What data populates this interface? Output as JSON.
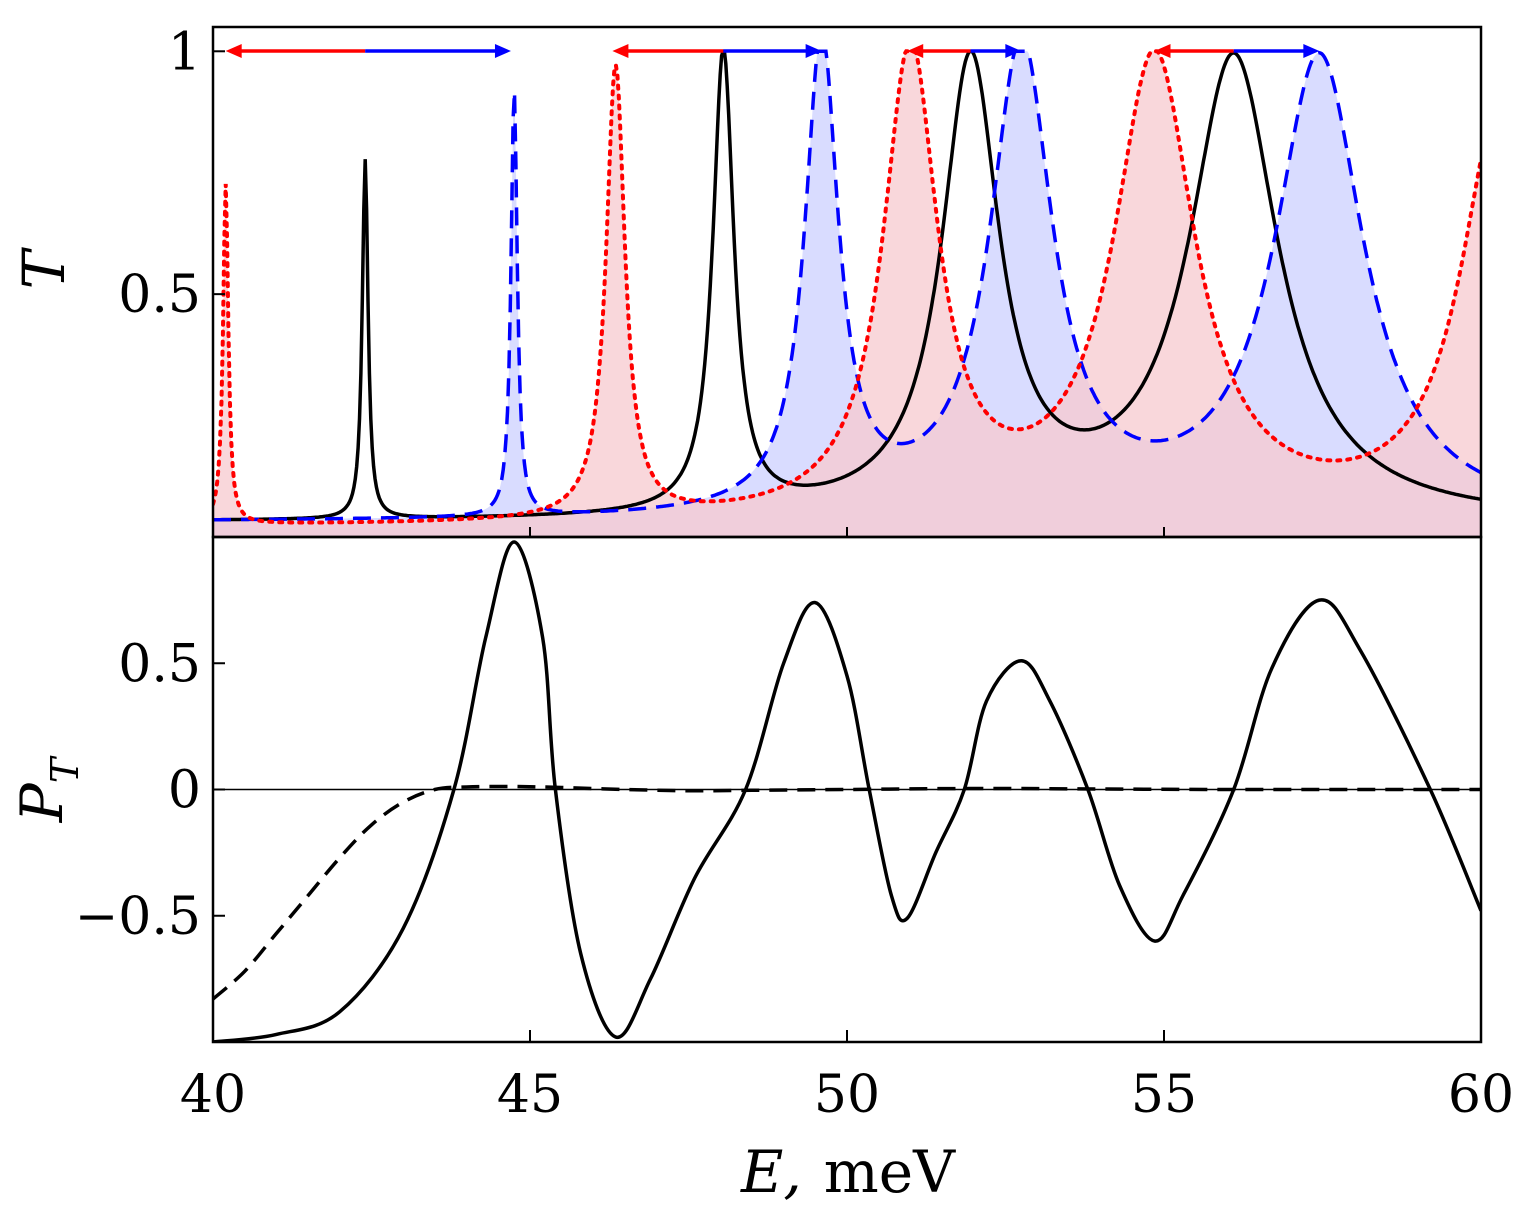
{
  "chart_data": [
    {
      "type": "line",
      "panel": "top",
      "ylabel": "T",
      "xlabel": "",
      "xlim": [
        40,
        60
      ],
      "ylim": [
        0,
        1.05
      ],
      "yticks": [
        {
          "value": 0.5,
          "label": "0.5"
        },
        {
          "value": 1,
          "label": "1"
        }
      ],
      "series": [
        {
          "name": "black-solid",
          "style": "solid",
          "color": "#000000",
          "fill": false,
          "peaks": [
            {
              "e": 42.4,
              "h": 0.74,
              "w": 0.055
            },
            {
              "e": 48.05,
              "h": 0.95,
              "w": 0.2
            },
            {
              "e": 51.95,
              "h": 0.93,
              "w": 0.55
            },
            {
              "e": 56.1,
              "h": 0.95,
              "w": 0.85
            }
          ],
          "baseline": 0.03
        },
        {
          "name": "blue-dashed",
          "style": "dashed",
          "color": "#0000ff",
          "fill": true,
          "fill_color": "#ccd0ff",
          "peaks": [
            {
              "e": 44.75,
              "h": 0.88,
              "w": 0.06
            },
            {
              "e": 49.6,
              "h": 0.97,
              "w": 0.32
            },
            {
              "e": 52.75,
              "h": 0.96,
              "w": 0.6
            },
            {
              "e": 57.45,
              "h": 0.95,
              "w": 0.85
            }
          ],
          "baseline": 0.03
        },
        {
          "name": "red-dotted",
          "style": "dotted",
          "color": "#ff0000",
          "fill": true,
          "fill_color": "#f7c9cf",
          "peaks": [
            {
              "e": 40.2,
              "h": 0.7,
              "w": 0.05
            },
            {
              "e": 46.35,
              "h": 0.93,
              "w": 0.18
            },
            {
              "e": 51.0,
              "h": 0.96,
              "w": 0.52
            },
            {
              "e": 54.85,
              "h": 0.95,
              "w": 0.78
            },
            {
              "e": 60.3,
              "h": 0.85,
              "w": 0.75
            }
          ],
          "baseline": 0.02
        }
      ],
      "arrows": [
        {
          "center": 42.4,
          "left": 40.2,
          "right": 44.7
        },
        {
          "center": 48.05,
          "left": 46.3,
          "right": 49.6
        },
        {
          "center": 51.95,
          "left": 50.95,
          "right": 52.75
        },
        {
          "center": 56.1,
          "left": 54.85,
          "right": 57.45
        }
      ],
      "arrow_colors": {
        "left": "#ff0000",
        "right": "#0000ff"
      }
    },
    {
      "type": "line",
      "panel": "bottom",
      "ylabel": "P",
      "ylabel_sub": "T",
      "xlabel": "E,",
      "xlabel_unit": "meV",
      "xlim": [
        40,
        60
      ],
      "ylim": [
        -1.0,
        1.0
      ],
      "xticks": [
        {
          "value": 40,
          "label": "40"
        },
        {
          "value": 45,
          "label": "45"
        },
        {
          "value": 50,
          "label": "50"
        },
        {
          "value": 55,
          "label": "55"
        },
        {
          "value": 60,
          "label": "60"
        }
      ],
      "yticks": [
        {
          "value": -0.5,
          "label": "−0.5"
        },
        {
          "value": 0,
          "label": "0"
        },
        {
          "value": 0.5,
          "label": "0.5"
        }
      ],
      "zero_line": true,
      "series": [
        {
          "name": "solid",
          "style": "solid",
          "color": "#000000",
          "points": [
            [
              40.0,
              -1.0
            ],
            [
              41.0,
              -0.97
            ],
            [
              42.0,
              -0.88
            ],
            [
              43.0,
              -0.55
            ],
            [
              43.8,
              0.0
            ],
            [
              44.3,
              0.6
            ],
            [
              44.75,
              0.98
            ],
            [
              45.2,
              0.6
            ],
            [
              45.4,
              0.0
            ],
            [
              45.8,
              -0.65
            ],
            [
              46.35,
              -0.98
            ],
            [
              46.9,
              -0.75
            ],
            [
              47.6,
              -0.35
            ],
            [
              48.4,
              0.0
            ],
            [
              49.0,
              0.5
            ],
            [
              49.5,
              0.74
            ],
            [
              50.0,
              0.45
            ],
            [
              50.35,
              0.0
            ],
            [
              50.7,
              -0.42
            ],
            [
              50.95,
              -0.51
            ],
            [
              51.4,
              -0.25
            ],
            [
              51.85,
              0.0
            ],
            [
              52.2,
              0.35
            ],
            [
              52.75,
              0.51
            ],
            [
              53.2,
              0.35
            ],
            [
              53.8,
              0.0
            ],
            [
              54.3,
              -0.38
            ],
            [
              54.85,
              -0.6
            ],
            [
              55.3,
              -0.42
            ],
            [
              56.1,
              0.0
            ],
            [
              56.7,
              0.48
            ],
            [
              57.45,
              0.75
            ],
            [
              58.1,
              0.55
            ],
            [
              59.2,
              0.0
            ],
            [
              60.0,
              -0.48
            ]
          ]
        },
        {
          "name": "dashed",
          "style": "dashed",
          "color": "#000000",
          "points": [
            [
              40.0,
              -0.83
            ],
            [
              40.5,
              -0.72
            ],
            [
              41.0,
              -0.57
            ],
            [
              41.5,
              -0.42
            ],
            [
              42.0,
              -0.27
            ],
            [
              42.5,
              -0.14
            ],
            [
              43.0,
              -0.05
            ],
            [
              43.5,
              0.0
            ],
            [
              44.0,
              0.01
            ],
            [
              44.75,
              0.012
            ],
            [
              45.5,
              0.008
            ],
            [
              46.5,
              0.0
            ],
            [
              47.5,
              -0.005
            ],
            [
              48.5,
              -0.003
            ],
            [
              50.0,
              0.0
            ],
            [
              52.0,
              0.004
            ],
            [
              54.0,
              0.002
            ],
            [
              56.0,
              0.0
            ],
            [
              58.0,
              0.0
            ],
            [
              60.0,
              0.0
            ]
          ]
        }
      ]
    }
  ]
}
